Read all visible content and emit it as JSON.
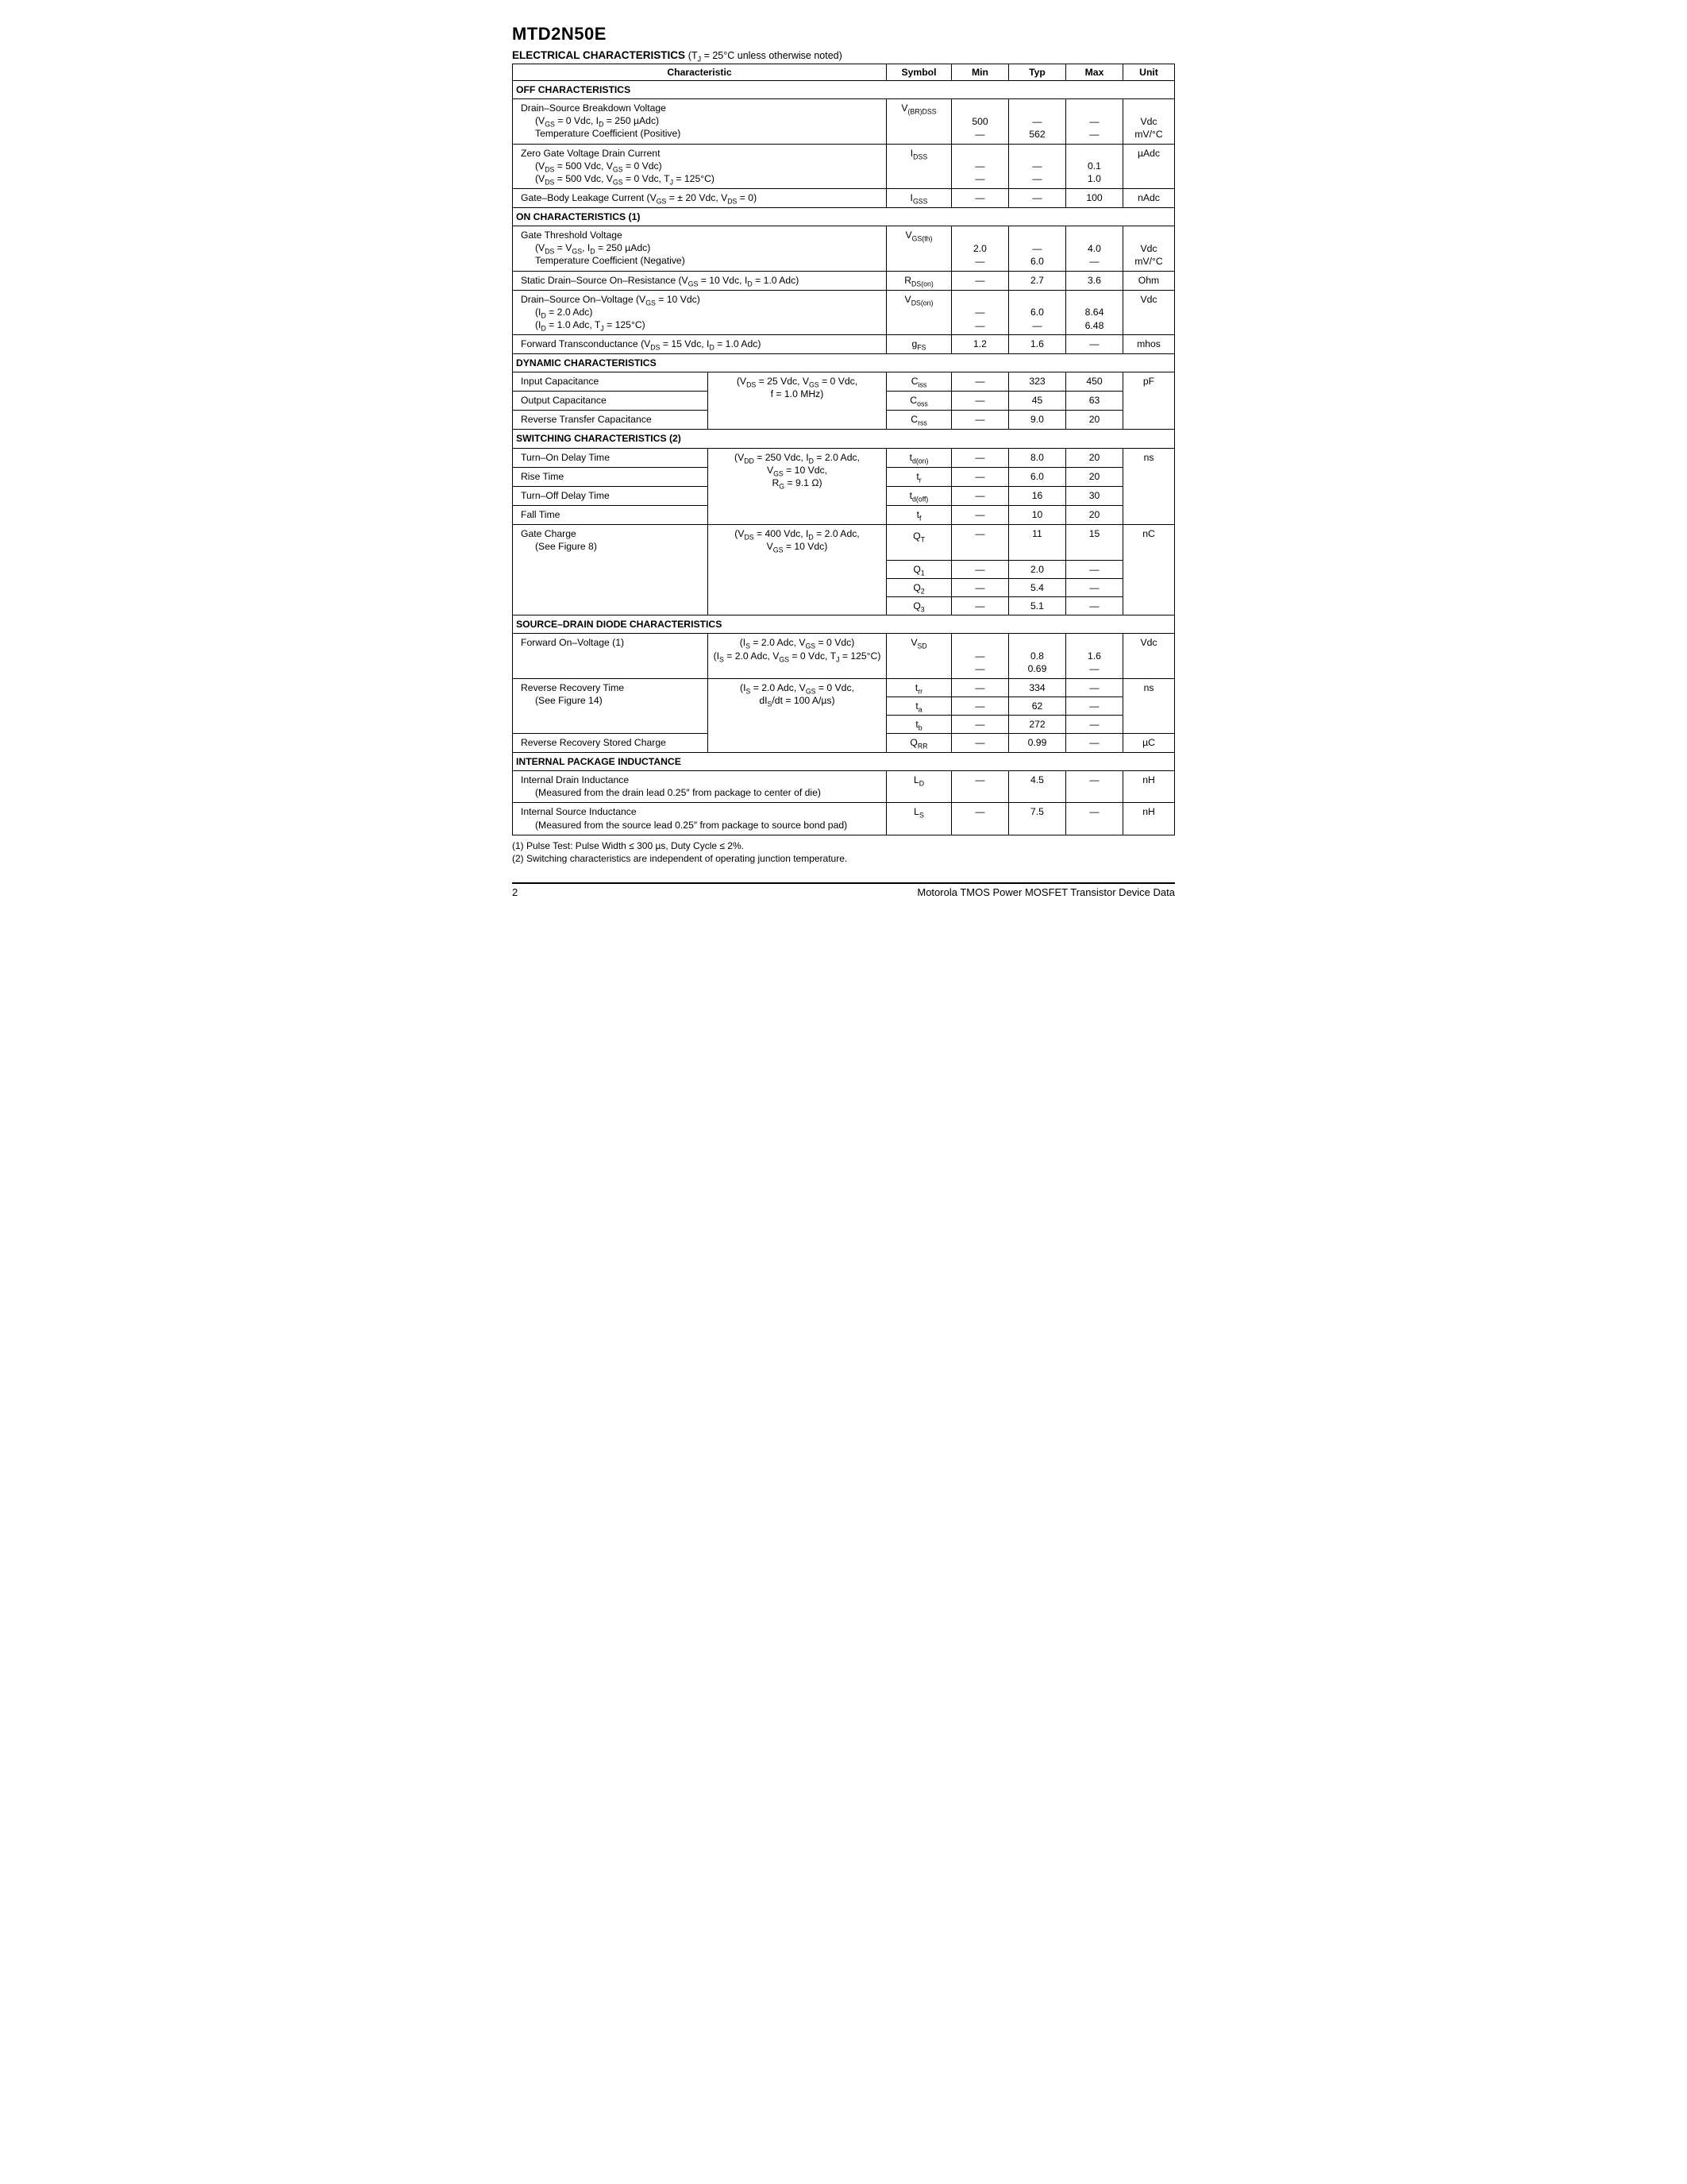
{
  "part_number": "MTD2N50E",
  "title": "ELECTRICAL CHARACTERISTICS",
  "title_condition": "(T<sub>J</sub> = 25°C unless otherwise noted)",
  "columns": [
    "Characteristic",
    "Symbol",
    "Min",
    "Typ",
    "Max",
    "Unit"
  ],
  "off_characteristics": {
    "heading": "OFF CHARACTERISTICS",
    "rows": [
      {
        "characteristic": "Drain–Source Breakdown Voltage",
        "sublines": [
          "(V<sub>GS</sub> = 0 Vdc, I<sub>D</sub> = 250 µAdc)",
          "Temperature Coefficient (Positive)"
        ],
        "symbol": "V<sub>(BR)DSS</sub>",
        "min": [
          "500",
          "—"
        ],
        "typ": [
          "—",
          "562"
        ],
        "max": [
          "—",
          "—"
        ],
        "unit": [
          "Vdc",
          "mV/°C"
        ]
      },
      {
        "characteristic": "Zero Gate Voltage Drain Current",
        "sublines": [
          "(V<sub>DS</sub> = 500 Vdc, V<sub>GS</sub> = 0 Vdc)",
          "(V<sub>DS</sub> = 500 Vdc, V<sub>GS</sub> = 0 Vdc, T<sub>J</sub> = 125°C)"
        ],
        "symbol": "I<sub>DSS</sub>",
        "min": [
          "—",
          "—"
        ],
        "typ": [
          "—",
          "—"
        ],
        "max": [
          "0.1",
          "1.0"
        ],
        "unit": [
          "µAdc"
        ]
      },
      {
        "characteristic": "Gate–Body Leakage Current (V<sub>GS</sub> = ± 20 Vdc, V<sub>DS</sub> = 0)",
        "sublines": [],
        "symbol": "I<sub>GSS</sub>",
        "min": [
          "—"
        ],
        "typ": [
          "—"
        ],
        "max": [
          "100"
        ],
        "unit": [
          "nAdc"
        ]
      }
    ]
  },
  "on_characteristics": {
    "heading": "ON CHARACTERISTICS (1)",
    "rows": [
      {
        "characteristic": "Gate Threshold Voltage",
        "sublines": [
          "(V<sub>DS</sub> = V<sub>GS</sub>, I<sub>D</sub> = 250 µAdc)",
          "Temperature Coefficient (Negative)"
        ],
        "symbol": "V<sub>GS(th)</sub>",
        "min": [
          "2.0",
          "—"
        ],
        "typ": [
          "—",
          "6.0"
        ],
        "max": [
          "4.0",
          "—"
        ],
        "unit": [
          "Vdc",
          "mV/°C"
        ]
      },
      {
        "characteristic": "Static Drain–Source On–Resistance (V<sub>GS</sub> = 10 Vdc, I<sub>D</sub> = 1.0 Adc)",
        "sublines": [],
        "symbol": "R<sub>DS(on)</sub>",
        "min": [
          "—"
        ],
        "typ": [
          "2.7"
        ],
        "max": [
          "3.6"
        ],
        "unit": [
          "Ohm"
        ]
      },
      {
        "characteristic": "Drain–Source On–Voltage (V<sub>GS</sub> = 10 Vdc)",
        "sublines": [
          "(I<sub>D</sub> = 2.0 Adc)",
          "(I<sub>D</sub> = 1.0 Adc, T<sub>J</sub> = 125°C)"
        ],
        "symbol": "V<sub>DS(on)</sub>",
        "min": [
          "—",
          "—"
        ],
        "typ": [
          "6.0",
          "—"
        ],
        "max": [
          "8.64",
          "6.48"
        ],
        "unit": [
          "Vdc"
        ]
      },
      {
        "characteristic": "Forward Transconductance (V<sub>DS</sub> = 15 Vdc, I<sub>D</sub> = 1.0 Adc)",
        "sublines": [],
        "symbol": "g<sub>FS</sub>",
        "min": [
          "1.2"
        ],
        "typ": [
          "1.6"
        ],
        "max": [
          "—"
        ],
        "unit": [
          "mhos"
        ]
      }
    ]
  },
  "dynamic": {
    "heading": "DYNAMIC CHARACTERISTICS",
    "condition": "(V<sub>DS</sub> = 25 Vdc, V<sub>GS</sub> = 0 Vdc,<br>f = 1.0 MHz)",
    "rows": [
      {
        "characteristic": "Input Capacitance",
        "symbol": "C<sub>iss</sub>",
        "min": "—",
        "typ": "323",
        "max": "450",
        "unit": "pF"
      },
      {
        "characteristic": "Output Capacitance",
        "symbol": "C<sub>oss</sub>",
        "min": "—",
        "typ": "45",
        "max": "63",
        "unit": ""
      },
      {
        "characteristic": "Reverse Transfer Capacitance",
        "symbol": "C<sub>rss</sub>",
        "min": "—",
        "typ": "9.0",
        "max": "20",
        "unit": ""
      }
    ]
  },
  "switching": {
    "heading": "SWITCHING CHARACTERISTICS (2)",
    "condition1": "(V<sub>DD</sub> = 250 Vdc, I<sub>D</sub> = 2.0 Adc,<br>V<sub>GS</sub> = 10 Vdc,<br>R<sub>G</sub> = 9.1 Ω)",
    "rows1": [
      {
        "characteristic": "Turn–On Delay Time",
        "symbol": "t<sub>d(on)</sub>",
        "min": "—",
        "typ": "8.0",
        "max": "20",
        "unit": "ns"
      },
      {
        "characteristic": "Rise Time",
        "symbol": "t<sub>r</sub>",
        "min": "—",
        "typ": "6.0",
        "max": "20",
        "unit": ""
      },
      {
        "characteristic": "Turn–Off Delay Time",
        "symbol": "t<sub>d(off)</sub>",
        "min": "—",
        "typ": "16",
        "max": "30",
        "unit": ""
      },
      {
        "characteristic": "Fall Time",
        "symbol": "t<sub>f</sub>",
        "min": "—",
        "typ": "10",
        "max": "20",
        "unit": ""
      }
    ],
    "gate_charge_label": "Gate Charge",
    "gate_charge_sub": "(See Figure 8)",
    "condition2": "(V<sub>DS</sub> = 400 Vdc, I<sub>D</sub> = 2.0 Adc,<br>V<sub>GS</sub> = 10 Vdc)",
    "rows2": [
      {
        "symbol": "Q<sub>T</sub>",
        "min": "—",
        "typ": "11",
        "max": "15",
        "unit": "nC"
      },
      {
        "symbol": "Q<sub>1</sub>",
        "min": "—",
        "typ": "2.0",
        "max": "—",
        "unit": ""
      },
      {
        "symbol": "Q<sub>2</sub>",
        "min": "—",
        "typ": "5.4",
        "max": "—",
        "unit": ""
      },
      {
        "symbol": "Q<sub>3</sub>",
        "min": "—",
        "typ": "5.1",
        "max": "—",
        "unit": ""
      }
    ]
  },
  "diode": {
    "heading": "SOURCE–DRAIN DIODE CHARACTERISTICS",
    "fwd_label": "Forward On–Voltage (1)",
    "fwd_cond": "(I<sub>S</sub> = 2.0 Adc, V<sub>GS</sub> = 0 Vdc)<br>(I<sub>S</sub> = 2.0 Adc, V<sub>GS</sub> = 0 Vdc, T<sub>J</sub> = 125°C)",
    "fwd": {
      "symbol": "V<sub>SD</sub>",
      "min": [
        "—",
        "—"
      ],
      "typ": [
        "0.8",
        "0.69"
      ],
      "max": [
        "1.6",
        "—"
      ],
      "unit": "Vdc"
    },
    "rr_label": "Reverse Recovery Time",
    "rr_sub": "(See Figure 14)",
    "rr_cond": "(I<sub>S</sub> = 2.0 Adc, V<sub>GS</sub> = 0 Vdc,<br>dI<sub>S</sub>/dt = 100 A/µs)",
    "rr_rows": [
      {
        "symbol": "t<sub>rr</sub>",
        "min": "—",
        "typ": "334",
        "max": "—",
        "unit": "ns"
      },
      {
        "symbol": "t<sub>a</sub>",
        "min": "—",
        "typ": "62",
        "max": "—",
        "unit": ""
      },
      {
        "symbol": "t<sub>b</sub>",
        "min": "—",
        "typ": "272",
        "max": "—",
        "unit": ""
      }
    ],
    "qrr_label": "Reverse Recovery Stored Charge",
    "qrr": {
      "symbol": "Q<sub>RR</sub>",
      "min": "—",
      "typ": "0.99",
      "max": "—",
      "unit": "µC"
    }
  },
  "inductance": {
    "heading": "INTERNAL PACKAGE INDUCTANCE",
    "rows": [
      {
        "characteristic": "Internal Drain Inductance",
        "sub": "(Measured from the drain lead 0.25″ from package to center of die)",
        "symbol": "L<sub>D</sub>",
        "min": "—",
        "typ": "4.5",
        "max": "—",
        "unit": "nH"
      },
      {
        "characteristic": "Internal Source Inductance",
        "sub": "(Measured from the source lead 0.25″ from package to source bond pad)",
        "symbol": "L<sub>S</sub>",
        "min": "—",
        "typ": "7.5",
        "max": "—",
        "unit": "nH"
      }
    ]
  },
  "footnotes": [
    "(1)  Pulse Test: Pulse Width ≤ 300 µs, Duty Cycle ≤ 2%.",
    "(2)  Switching characteristics are independent of operating junction temperature."
  ],
  "page_number": "2",
  "footer_text": "Motorola TMOS Power MOSFET Transistor Device Data"
}
